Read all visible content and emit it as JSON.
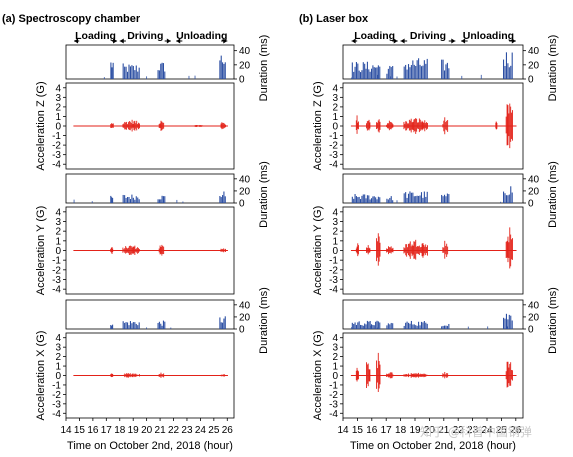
{
  "figure": {
    "xlabel": "Time on October 2nd, 2018 (hour)",
    "watermark": "知乎 @科普中国钢弹",
    "colors": {
      "duration": "#2c4fa3",
      "accel": "#e32219",
      "axis": "#000000"
    },
    "phases": [
      {
        "label": "Loading",
        "start": 14.6,
        "end": 17.8
      },
      {
        "label": "Driving",
        "start": 18.0,
        "end": 21.8
      },
      {
        "label": "Unloading",
        "start": 22.2,
        "end": 26.0
      }
    ]
  },
  "chart_data": [
    {
      "type": "line",
      "title": "(a) Spectroscopy chamber",
      "xlim": [
        14,
        26.5
      ],
      "xticks": [
        14,
        15,
        16,
        17,
        18,
        19,
        20,
        21,
        22,
        23,
        24,
        25,
        26
      ],
      "duration_axis": {
        "ylim": [
          0,
          48
        ],
        "yticks": [
          0,
          20,
          40
        ],
        "ylabel": "Duration (ms)"
      },
      "accel_axis": {
        "ylim": [
          -4.5,
          4.5
        ],
        "yticks": [
          4,
          3,
          2,
          1,
          0,
          -1,
          -2,
          -3,
          -4
        ]
      },
      "rows": [
        {
          "ylabel": "Acceleration Z (G)",
          "duration_bursts": [
            [
              17.3,
              17.55,
              30
            ],
            [
              18.2,
              19.5,
              22
            ],
            [
              20.8,
              21.4,
              25
            ],
            [
              25.4,
              25.9,
              40
            ]
          ],
          "accel_bursts": [
            [
              17.3,
              17.55,
              0.5
            ],
            [
              18.2,
              19.5,
              0.7
            ],
            [
              20.9,
              21.3,
              0.9
            ],
            [
              23.5,
              24.2,
              0.15
            ],
            [
              25.5,
              25.9,
              0.6
            ]
          ]
        },
        {
          "ylabel": "Acceleration Y (G)",
          "duration_bursts": [
            [
              17.3,
              17.5,
              12
            ],
            [
              18.2,
              19.5,
              15
            ],
            [
              20.8,
              21.4,
              14
            ],
            [
              25.4,
              25.9,
              20
            ]
          ],
          "accel_bursts": [
            [
              17.3,
              17.5,
              0.4
            ],
            [
              18.2,
              19.5,
              0.6
            ],
            [
              20.9,
              21.3,
              0.7
            ],
            [
              25.5,
              25.9,
              0.35
            ]
          ]
        },
        {
          "ylabel": "Acceleration X (G)",
          "duration_bursts": [
            [
              17.3,
              17.5,
              14
            ],
            [
              18.2,
              19.5,
              15
            ],
            [
              20.8,
              21.4,
              14
            ],
            [
              25.4,
              25.9,
              22
            ]
          ],
          "accel_bursts": [
            [
              17.3,
              17.5,
              0.25
            ],
            [
              18.2,
              19.5,
              0.3
            ],
            [
              20.9,
              21.3,
              0.4
            ],
            [
              25.5,
              25.9,
              0.25
            ]
          ]
        }
      ]
    },
    {
      "type": "line",
      "title": "(b) Laser box",
      "xlim": [
        14,
        26.5
      ],
      "xticks": [
        14,
        15,
        16,
        17,
        18,
        19,
        20,
        21,
        22,
        23,
        24,
        25,
        26
      ],
      "duration_axis": {
        "ylim": [
          0,
          48
        ],
        "yticks": [
          0,
          20,
          40
        ],
        "ylabel": "Duration (ms)"
      },
      "accel_axis": {
        "ylim": [
          -4.5,
          4.5
        ],
        "yticks": [
          4,
          3,
          2,
          1,
          0,
          -1,
          -2,
          -3,
          -4
        ]
      },
      "rows": [
        {
          "ylabel": "Acceleration Z (G)",
          "duration_bursts": [
            [
              14.6,
              16.6,
              25
            ],
            [
              17.0,
              17.5,
              20
            ],
            [
              18.2,
              19.9,
              30
            ],
            [
              20.8,
              21.4,
              28
            ],
            [
              25.1,
              25.8,
              42
            ]
          ],
          "accel_bursts": [
            [
              14.9,
              15.1,
              1.2
            ],
            [
              15.6,
              15.9,
              0.8
            ],
            [
              16.3,
              16.6,
              1.1
            ],
            [
              17.0,
              17.5,
              0.6
            ],
            [
              18.2,
              19.9,
              0.9
            ],
            [
              20.9,
              21.3,
              1.0
            ],
            [
              24.6,
              24.7,
              0.5
            ],
            [
              25.3,
              25.8,
              3.0
            ]
          ]
        },
        {
          "ylabel": "Acceleration Y (G)",
          "duration_bursts": [
            [
              14.6,
              16.6,
              15
            ],
            [
              17.0,
              17.5,
              12
            ],
            [
              18.2,
              19.9,
              20
            ],
            [
              20.8,
              21.4,
              16
            ],
            [
              25.1,
              25.8,
              32
            ]
          ],
          "accel_bursts": [
            [
              14.9,
              15.1,
              0.9
            ],
            [
              15.6,
              15.9,
              0.7
            ],
            [
              16.3,
              16.6,
              2.5
            ],
            [
              17.0,
              17.5,
              0.5
            ],
            [
              18.2,
              19.9,
              1.2
            ],
            [
              20.9,
              21.3,
              1.1
            ],
            [
              25.3,
              25.8,
              2.6
            ]
          ]
        },
        {
          "ylabel": "Acceleration X (G)",
          "duration_bursts": [
            [
              14.6,
              16.6,
              14
            ],
            [
              17.0,
              17.5,
              12
            ],
            [
              18.2,
              19.9,
              14
            ],
            [
              20.8,
              21.4,
              12
            ],
            [
              25.1,
              25.8,
              30
            ]
          ],
          "accel_bursts": [
            [
              14.9,
              15.1,
              0.9
            ],
            [
              15.6,
              15.9,
              2.2
            ],
            [
              16.3,
              16.6,
              2.5
            ],
            [
              17.0,
              17.5,
              0.5
            ],
            [
              18.2,
              19.9,
              0.3
            ],
            [
              20.9,
              21.3,
              0.4
            ],
            [
              25.3,
              25.8,
              2.0
            ]
          ]
        }
      ]
    }
  ]
}
